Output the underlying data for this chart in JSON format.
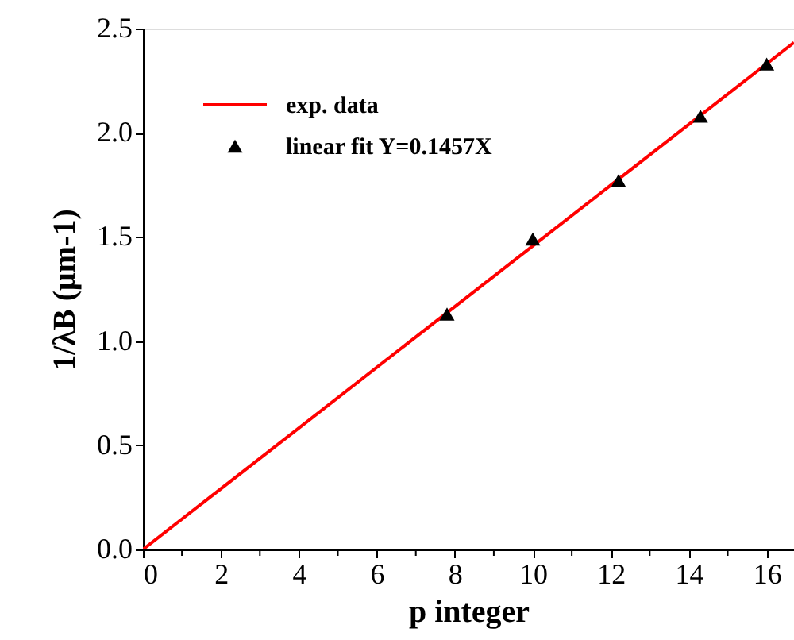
{
  "chart_data": {
    "type": "scatter",
    "xlabel": "p integer",
    "ylabel": "1/λB (μm-1)",
    "xlim": [
      0,
      16.7
    ],
    "ylim": [
      0,
      2.5
    ],
    "xticks": [
      0,
      {
        "value": 1,
        "label": null
      },
      2,
      {
        "value": 3,
        "label": null
      },
      4,
      {
        "value": 5,
        "label": null
      },
      6,
      {
        "value": 7,
        "label": null
      },
      8,
      {
        "value": 9,
        "label": null
      },
      10,
      {
        "value": 11,
        "label": null
      },
      12,
      {
        "value": 13,
        "label": null
      },
      14,
      {
        "value": 15,
        "label": null
      },
      16
    ],
    "yticks": [
      {
        "value": 0,
        "label": "0.0"
      },
      0.5,
      {
        "value": 1,
        "label": "1.0"
      },
      1.5,
      {
        "value": 2,
        "label": "2.0"
      },
      2.5
    ],
    "series": [
      {
        "name": "exp. data",
        "type": "line",
        "color": "#ff0000",
        "x": [
          0,
          16.7
        ],
        "values": [
          0,
          2.433
        ],
        "marker": "none",
        "line_style": "solid"
      },
      {
        "name": "linear fit Y=0.1457X",
        "type": "scatter",
        "color": "#000000",
        "x": [
          7.8,
          10.0,
          12.2,
          14.3,
          16.0
        ],
        "values": [
          1.13,
          1.49,
          1.77,
          2.08,
          2.33
        ],
        "marker": "triangle"
      }
    ],
    "grid": false,
    "legend": "top left"
  }
}
